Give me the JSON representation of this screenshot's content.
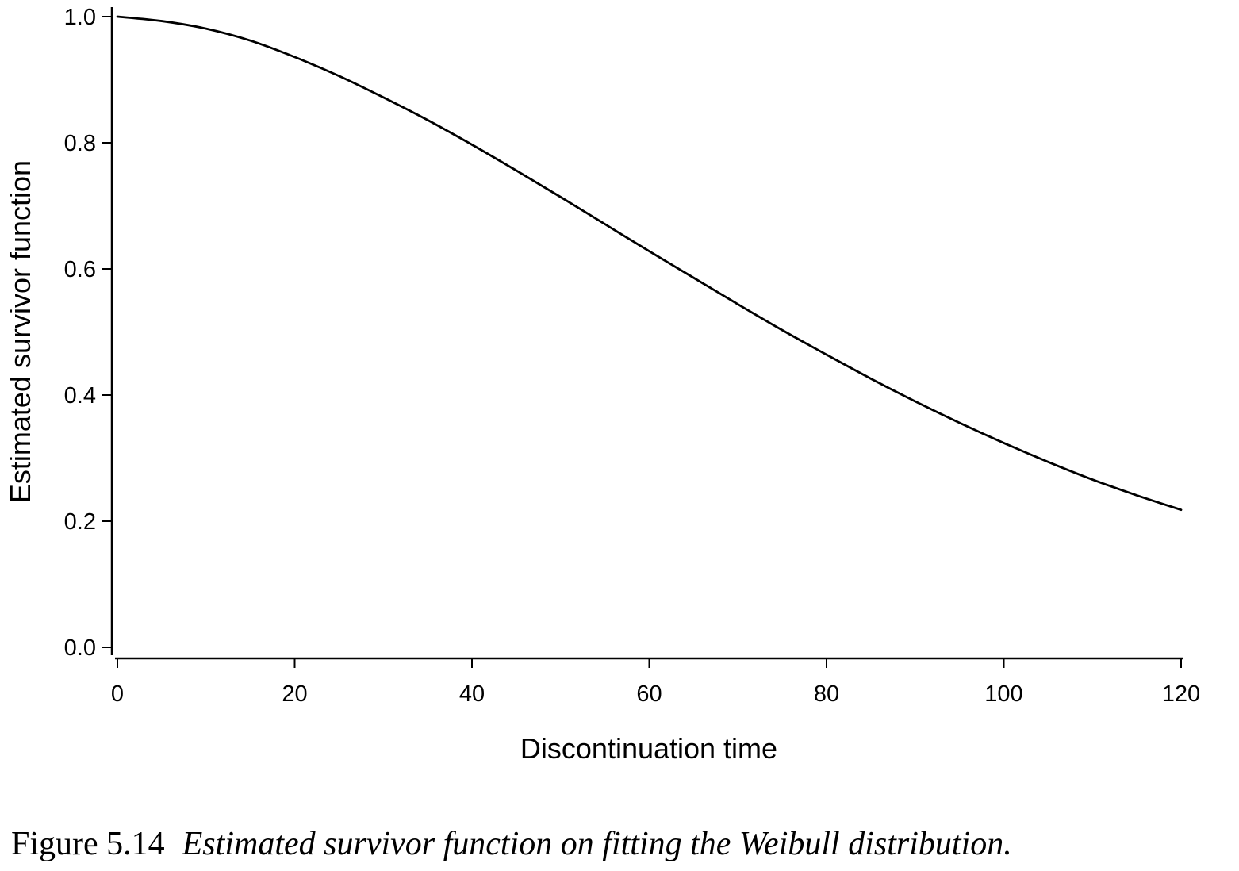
{
  "chart_data": {
    "type": "line",
    "title": "",
    "xlabel": "Discontinuation time",
    "ylabel": "Estimated survivor function",
    "xlim": [
      0,
      120
    ],
    "ylim": [
      0,
      1
    ],
    "xticks": [
      0,
      20,
      40,
      60,
      80,
      100,
      120
    ],
    "xtick_labels": [
      "0",
      "20",
      "40",
      "60",
      "80",
      "100",
      "120"
    ],
    "yticks": [
      0,
      0.2,
      0.4,
      0.6,
      0.8,
      1.0
    ],
    "ytick_labels": [
      "0.0",
      "0.2",
      "0.4",
      "0.6",
      "0.8",
      "1.0"
    ],
    "grid": false,
    "series": [
      {
        "x": [
          0,
          5,
          10,
          15,
          20,
          25,
          30,
          35,
          40,
          45,
          50,
          55,
          60,
          65,
          70,
          75,
          80,
          85,
          90,
          95,
          100,
          105,
          110,
          115,
          120
        ],
        "y": [
          1.0,
          0.993,
          0.981,
          0.962,
          0.936,
          0.906,
          0.872,
          0.836,
          0.797,
          0.756,
          0.714,
          0.671,
          0.628,
          0.586,
          0.544,
          0.503,
          0.464,
          0.426,
          0.39,
          0.356,
          0.324,
          0.294,
          0.266,
          0.241,
          0.218
        ],
        "color": "#000000"
      }
    ]
  },
  "caption": {
    "number": "Figure 5.14",
    "text": "Estimated survivor function on fitting the Weibull distribution."
  }
}
